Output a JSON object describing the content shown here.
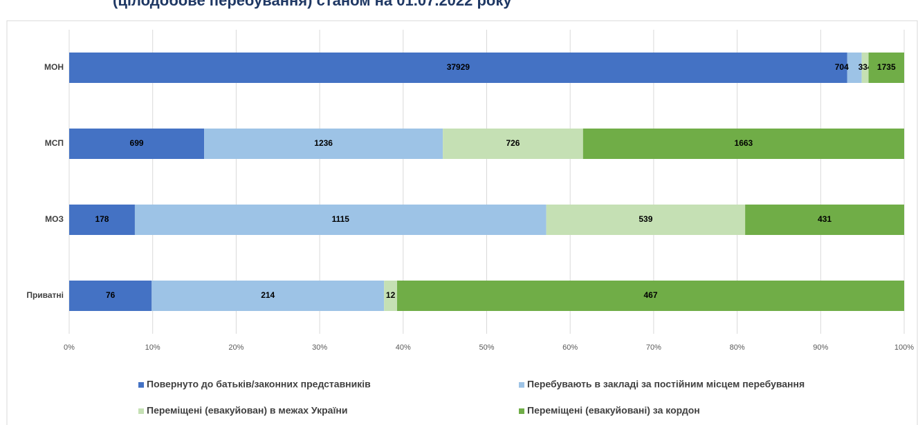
{
  "chart_data": {
    "type": "bar",
    "orientation": "horizontal",
    "stacked": "percent",
    "title": "(цілодобове перебування) станом на 01.07.2022 року",
    "categories": [
      "МОН",
      "МСП",
      "МОЗ",
      "Приватні"
    ],
    "series": [
      {
        "name": "Повернуто до батьків/законних представників",
        "color": "#4472c4",
        "values": [
          37929,
          699,
          178,
          76
        ]
      },
      {
        "name": "Перебувають в закладі за постійним місцем перебування",
        "color": "#9dc3e6",
        "values": [
          704,
          1236,
          1115,
          214
        ]
      },
      {
        "name": "Переміщені (евакуйован) в межах України",
        "color": "#c5e0b4",
        "values": [
          334,
          726,
          539,
          12
        ]
      },
      {
        "name": "Переміщені (евакуйовані) за кордон",
        "color": "#70ad47",
        "values": [
          1735,
          1663,
          431,
          467
        ]
      }
    ],
    "xlim": [
      0,
      100
    ],
    "xticks": [
      {
        "value": 0,
        "label": "0%"
      },
      {
        "value": 10,
        "label": "10%"
      },
      {
        "value": 20,
        "label": "20%"
      },
      {
        "value": 30,
        "label": "30%"
      },
      {
        "value": 40,
        "label": "40%"
      },
      {
        "value": 50,
        "label": "50%"
      },
      {
        "value": 60,
        "label": "60%"
      },
      {
        "value": 70,
        "label": "70%"
      },
      {
        "value": 80,
        "label": "80%"
      },
      {
        "value": 90,
        "label": "90%"
      },
      {
        "value": 100,
        "label": "100%"
      }
    ],
    "grid": true
  }
}
